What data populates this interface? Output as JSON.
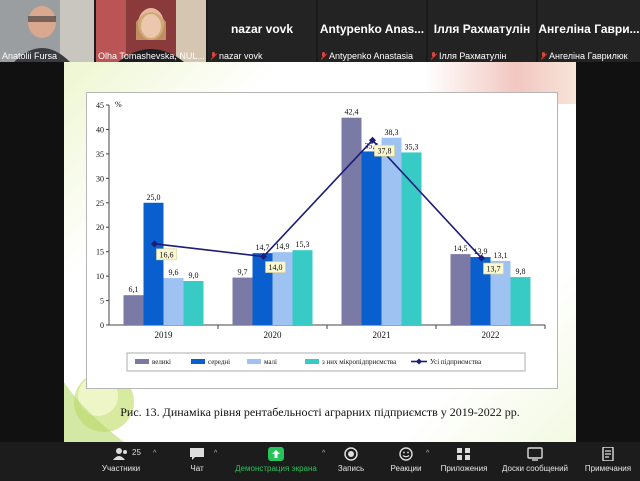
{
  "participants": [
    {
      "name": "Anatolii Fursa",
      "has_video": true,
      "muted": false
    },
    {
      "name": "Olha Tomashevska, NUL...",
      "has_video": true,
      "muted": false
    },
    {
      "display": "nazar vovk",
      "name": "nazar vovk",
      "muted": true
    },
    {
      "display": "Antypenko  Anas...",
      "name": "Antypenko Anastasia",
      "muted": true
    },
    {
      "display": "Ілля Рахматулін",
      "name": "Ілля Рахматулін",
      "muted": true
    },
    {
      "display": "Ангеліна  Гаври...",
      "name": "Ангеліна Гаврилюк",
      "muted": true
    }
  ],
  "chart_data": {
    "type": "bar",
    "ylabel": "%",
    "ylim": [
      0,
      45
    ],
    "yticks": [
      0,
      5,
      10,
      15,
      20,
      25,
      30,
      35,
      40,
      45
    ],
    "categories": [
      "2019",
      "2020",
      "2021",
      "2022"
    ],
    "series": [
      {
        "name": "великі",
        "color": "#7b7aa6",
        "values": [
          6.1,
          9.7,
          42.4,
          14.5
        ],
        "labels": [
          "6,1",
          "9,7",
          "42,4",
          "14,5"
        ]
      },
      {
        "name": "середні",
        "color": "#0a5fcf",
        "values": [
          25.0,
          14.7,
          35.5,
          13.9
        ],
        "labels": [
          "25,0",
          "14,7",
          "35,5",
          "13,9"
        ]
      },
      {
        "name": "малі",
        "color": "#9ec3f2",
        "values": [
          9.6,
          14.9,
          38.3,
          13.1
        ],
        "labels": [
          "9,6",
          "14,9",
          "38,3",
          "13,1"
        ]
      },
      {
        "name": "з них мікропідприємства",
        "color": "#38cbc6",
        "values": [
          9.0,
          15.3,
          35.3,
          9.8
        ],
        "labels": [
          "9,0",
          "15,3",
          "35,3",
          "9,8"
        ]
      }
    ],
    "line": {
      "name": "Усі підприємства",
      "color": "#1c1c7a",
      "values": [
        16.6,
        14.0,
        37.8,
        13.7
      ],
      "labels": [
        "16,6",
        "14,0",
        "37,8",
        "13,7"
      ]
    },
    "legend_position": "bottom",
    "caption": "Рис. 13. Динаміка рівня рентабельності аграрних підприємств у 2019-2022 рр."
  },
  "toolbar": {
    "participants_label": "Участники",
    "participants_count": "25",
    "chat_label": "Чат",
    "share_label": "Демонстрация экрана",
    "record_label": "Запись",
    "reactions_label": "Реакции",
    "apps_label": "Приложения",
    "whiteboard_label": "Доски сообщений",
    "notes_label": "Примечания"
  }
}
